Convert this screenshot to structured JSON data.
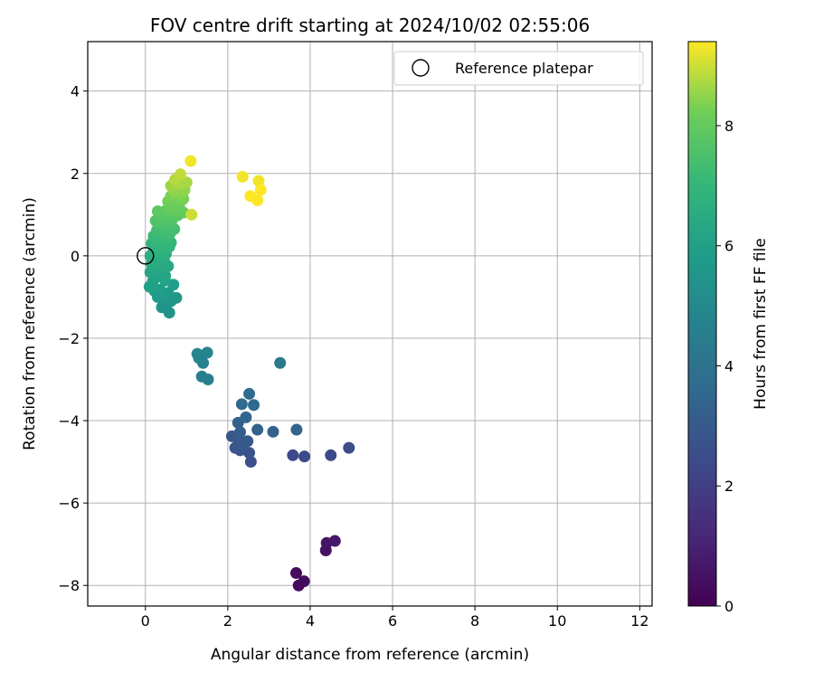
{
  "chart_data": {
    "type": "scatter",
    "title": "FOV centre drift starting at 2024/10/02 02:55:06",
    "xlabel": "Angular distance from reference (arcmin)",
    "ylabel": "Rotation from reference (arcmin)",
    "xlim": [
      -1.4,
      12.3
    ],
    "ylim": [
      -8.5,
      5.2
    ],
    "xticks": [
      0,
      2,
      4,
      6,
      8,
      10,
      12
    ],
    "yticks": [
      -8,
      -6,
      -4,
      -2,
      0,
      2,
      4
    ],
    "grid": true,
    "legend": {
      "placement": "top-right",
      "entries": [
        "Reference platepar"
      ]
    },
    "reference": {
      "x": 0,
      "y": 0
    },
    "colorbar": {
      "label": "Hours from first FF file",
      "range": [
        0,
        9.4
      ],
      "ticks": [
        0,
        2,
        4,
        6,
        8
      ],
      "colormap": "viridis"
    },
    "points": [
      {
        "x": 3.72,
        "y": -8.0,
        "c": 0.2
      },
      {
        "x": 3.85,
        "y": -7.9,
        "c": 0.3
      },
      {
        "x": 3.66,
        "y": -7.7,
        "c": 0.3
      },
      {
        "x": 4.38,
        "y": -7.15,
        "c": 0.5
      },
      {
        "x": 4.4,
        "y": -6.97,
        "c": 0.6
      },
      {
        "x": 4.6,
        "y": -6.92,
        "c": 0.7
      },
      {
        "x": 3.58,
        "y": -4.84,
        "c": 2.3
      },
      {
        "x": 3.86,
        "y": -4.87,
        "c": 2.4
      },
      {
        "x": 4.5,
        "y": -4.84,
        "c": 2.4
      },
      {
        "x": 4.94,
        "y": -4.66,
        "c": 2.5
      },
      {
        "x": 2.56,
        "y": -5.0,
        "c": 2.6
      },
      {
        "x": 2.52,
        "y": -4.78,
        "c": 2.7
      },
      {
        "x": 2.3,
        "y": -4.72,
        "c": 2.7
      },
      {
        "x": 2.18,
        "y": -4.66,
        "c": 2.8
      },
      {
        "x": 2.36,
        "y": -4.6,
        "c": 2.9
      },
      {
        "x": 2.1,
        "y": -4.38,
        "c": 2.9
      },
      {
        "x": 2.25,
        "y": -4.45,
        "c": 3.0
      },
      {
        "x": 2.48,
        "y": -4.5,
        "c": 3.0
      },
      {
        "x": 2.3,
        "y": -4.28,
        "c": 3.1
      },
      {
        "x": 2.25,
        "y": -4.05,
        "c": 3.2
      },
      {
        "x": 2.72,
        "y": -4.22,
        "c": 3.3
      },
      {
        "x": 3.1,
        "y": -4.27,
        "c": 3.3
      },
      {
        "x": 3.67,
        "y": -4.22,
        "c": 3.4
      },
      {
        "x": 2.44,
        "y": -3.92,
        "c": 3.5
      },
      {
        "x": 2.34,
        "y": -3.6,
        "c": 3.6
      },
      {
        "x": 2.63,
        "y": -3.62,
        "c": 3.6
      },
      {
        "x": 2.52,
        "y": -3.35,
        "c": 3.7
      },
      {
        "x": 3.27,
        "y": -2.6,
        "c": 4.3
      },
      {
        "x": 1.37,
        "y": -2.93,
        "c": 4.5
      },
      {
        "x": 1.52,
        "y": -3.0,
        "c": 4.5
      },
      {
        "x": 1.4,
        "y": -2.6,
        "c": 4.6
      },
      {
        "x": 1.3,
        "y": -2.48,
        "c": 4.7
      },
      {
        "x": 1.26,
        "y": -2.38,
        "c": 4.8
      },
      {
        "x": 1.5,
        "y": -2.35,
        "c": 4.8
      },
      {
        "x": 0.58,
        "y": -1.38,
        "c": 5.4
      },
      {
        "x": 0.4,
        "y": -1.25,
        "c": 5.5
      },
      {
        "x": 0.5,
        "y": -1.18,
        "c": 5.5
      },
      {
        "x": 0.62,
        "y": -1.1,
        "c": 5.6
      },
      {
        "x": 0.75,
        "y": -1.02,
        "c": 5.6
      },
      {
        "x": 0.3,
        "y": -1.0,
        "c": 5.7
      },
      {
        "x": 0.45,
        "y": -0.95,
        "c": 5.7
      },
      {
        "x": 0.55,
        "y": -0.9,
        "c": 5.8
      },
      {
        "x": 0.22,
        "y": -0.85,
        "c": 5.8
      },
      {
        "x": 0.35,
        "y": -0.82,
        "c": 5.9
      },
      {
        "x": 0.68,
        "y": -0.7,
        "c": 5.9
      },
      {
        "x": 0.1,
        "y": -0.75,
        "c": 6.0
      },
      {
        "x": 0.18,
        "y": -0.62,
        "c": 6.0
      },
      {
        "x": 0.48,
        "y": -0.6,
        "c": 6.1
      },
      {
        "x": 0.3,
        "y": -0.5,
        "c": 6.1
      },
      {
        "x": 0.48,
        "y": -0.48,
        "c": 6.2
      },
      {
        "x": 0.12,
        "y": -0.4,
        "c": 6.2
      },
      {
        "x": 0.25,
        "y": -0.32,
        "c": 6.3
      },
      {
        "x": 0.4,
        "y": -0.3,
        "c": 6.3
      },
      {
        "x": 0.55,
        "y": -0.25,
        "c": 6.4
      },
      {
        "x": 0.15,
        "y": -0.2,
        "c": 6.4
      },
      {
        "x": 0.28,
        "y": -0.12,
        "c": 6.5
      },
      {
        "x": 0.45,
        "y": -0.1,
        "c": 6.5
      },
      {
        "x": 0.12,
        "y": 0.0,
        "c": 6.6
      },
      {
        "x": 0.32,
        "y": 0.02,
        "c": 6.6
      },
      {
        "x": 0.5,
        "y": 0.05,
        "c": 6.7
      },
      {
        "x": 0.2,
        "y": 0.12,
        "c": 6.7
      },
      {
        "x": 0.4,
        "y": 0.15,
        "c": 6.8
      },
      {
        "x": 0.25,
        "y": 0.22,
        "c": 6.8
      },
      {
        "x": 0.58,
        "y": 0.22,
        "c": 6.9
      },
      {
        "x": 0.15,
        "y": 0.3,
        "c": 6.9
      },
      {
        "x": 0.45,
        "y": 0.3,
        "c": 7.0
      },
      {
        "x": 0.62,
        "y": 0.32,
        "c": 7.0
      },
      {
        "x": 0.3,
        "y": 0.4,
        "c": 7.1
      },
      {
        "x": 0.2,
        "y": 0.48,
        "c": 7.1
      },
      {
        "x": 0.5,
        "y": 0.45,
        "c": 7.2
      },
      {
        "x": 0.38,
        "y": 0.55,
        "c": 7.2
      },
      {
        "x": 0.6,
        "y": 0.55,
        "c": 7.3
      },
      {
        "x": 0.28,
        "y": 0.62,
        "c": 7.3
      },
      {
        "x": 0.45,
        "y": 0.68,
        "c": 7.4
      },
      {
        "x": 0.7,
        "y": 0.65,
        "c": 7.4
      },
      {
        "x": 0.35,
        "y": 0.75,
        "c": 7.5
      },
      {
        "x": 0.55,
        "y": 0.78,
        "c": 7.5
      },
      {
        "x": 0.25,
        "y": 0.85,
        "c": 7.6
      },
      {
        "x": 0.48,
        "y": 0.88,
        "c": 7.6
      },
      {
        "x": 0.65,
        "y": 0.88,
        "c": 7.7
      },
      {
        "x": 0.38,
        "y": 0.95,
        "c": 7.7
      },
      {
        "x": 0.58,
        "y": 1.0,
        "c": 7.8
      },
      {
        "x": 0.78,
        "y": 0.98,
        "c": 7.8
      },
      {
        "x": 0.3,
        "y": 1.08,
        "c": 7.9
      },
      {
        "x": 0.5,
        "y": 1.1,
        "c": 7.9
      },
      {
        "x": 0.7,
        "y": 1.12,
        "c": 8.0
      },
      {
        "x": 0.92,
        "y": 1.05,
        "c": 8.0
      },
      {
        "x": 0.6,
        "y": 1.2,
        "c": 8.1
      },
      {
        "x": 0.82,
        "y": 1.22,
        "c": 8.1
      },
      {
        "x": 0.55,
        "y": 1.32,
        "c": 8.2
      },
      {
        "x": 0.75,
        "y": 1.35,
        "c": 8.2
      },
      {
        "x": 0.92,
        "y": 1.38,
        "c": 8.3
      },
      {
        "x": 0.62,
        "y": 1.45,
        "c": 8.3
      },
      {
        "x": 0.85,
        "y": 1.5,
        "c": 8.4
      },
      {
        "x": 0.7,
        "y": 1.58,
        "c": 8.5
      },
      {
        "x": 0.95,
        "y": 1.6,
        "c": 8.5
      },
      {
        "x": 0.62,
        "y": 1.7,
        "c": 8.6
      },
      {
        "x": 0.82,
        "y": 1.75,
        "c": 8.7
      },
      {
        "x": 1.0,
        "y": 1.78,
        "c": 8.7
      },
      {
        "x": 0.72,
        "y": 1.85,
        "c": 8.8
      },
      {
        "x": 0.85,
        "y": 1.98,
        "c": 8.9
      },
      {
        "x": 1.12,
        "y": 1.0,
        "c": 9.0
      },
      {
        "x": 1.1,
        "y": 2.3,
        "c": 9.3
      },
      {
        "x": 2.36,
        "y": 1.92,
        "c": 9.3
      },
      {
        "x": 2.75,
        "y": 1.82,
        "c": 9.3
      },
      {
        "x": 2.8,
        "y": 1.6,
        "c": 9.4
      },
      {
        "x": 2.55,
        "y": 1.45,
        "c": 9.4
      },
      {
        "x": 2.72,
        "y": 1.35,
        "c": 9.4
      }
    ]
  }
}
